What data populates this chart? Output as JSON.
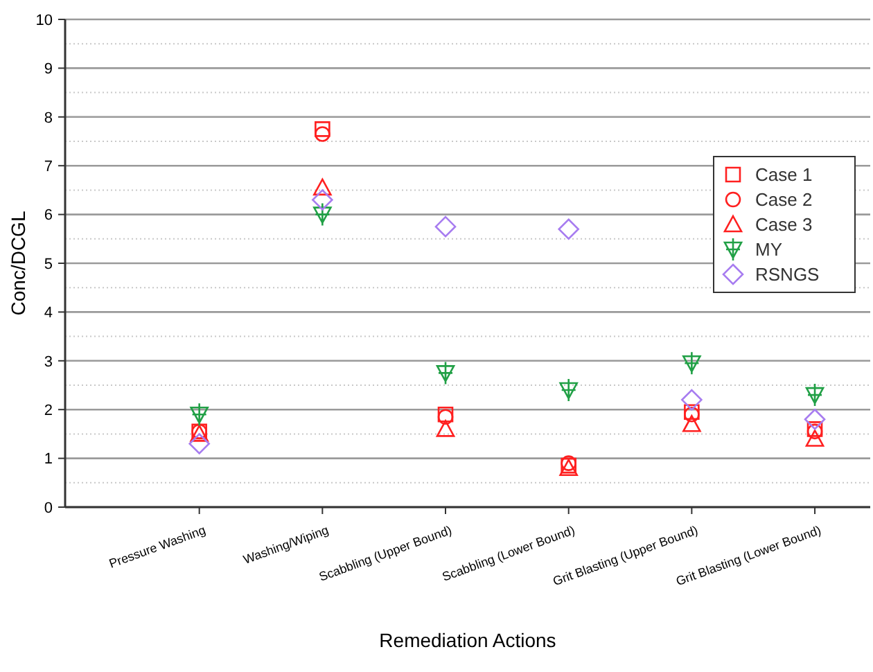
{
  "chart_data": {
    "type": "scatter",
    "xlabel": "Remediation Actions",
    "ylabel": "Conc/DCGL",
    "categories": [
      "Pressure Washing",
      "Washing/Wiping",
      "Scabbling (Upper Bound)",
      "Scabbling (Lower Bound)",
      "Grit Blasting (Upper Bound)",
      "Grit Blasting (Lower Bound)"
    ],
    "ylim": [
      0,
      10
    ],
    "yticks": [
      0,
      1,
      2,
      3,
      4,
      5,
      6,
      7,
      8,
      9,
      10
    ],
    "grid": true,
    "legend": "top right",
    "series": [
      {
        "name": "Case 1",
        "color": "#ff2020",
        "marker": "square",
        "values": [
          1.55,
          7.75,
          1.9,
          0.85,
          1.95,
          1.6
        ]
      },
      {
        "name": "Case 2",
        "color": "#ff2020",
        "marker": "circle",
        "values": [
          1.55,
          7.65,
          1.85,
          0.9,
          1.9,
          1.55
        ]
      },
      {
        "name": "Case 3",
        "color": "#ff2020",
        "marker": "triangle",
        "values": [
          1.5,
          6.55,
          1.6,
          0.8,
          1.7,
          1.4
        ]
      },
      {
        "name": "MY",
        "color": "#21a046",
        "marker": "cross",
        "values": [
          1.9,
          6.0,
          2.75,
          2.4,
          2.95,
          2.3
        ]
      },
      {
        "name": "RSNGS",
        "color": "#a77cf0",
        "marker": "diamond",
        "values": [
          1.3,
          6.3,
          5.75,
          5.7,
          2.2,
          1.8
        ]
      }
    ]
  }
}
